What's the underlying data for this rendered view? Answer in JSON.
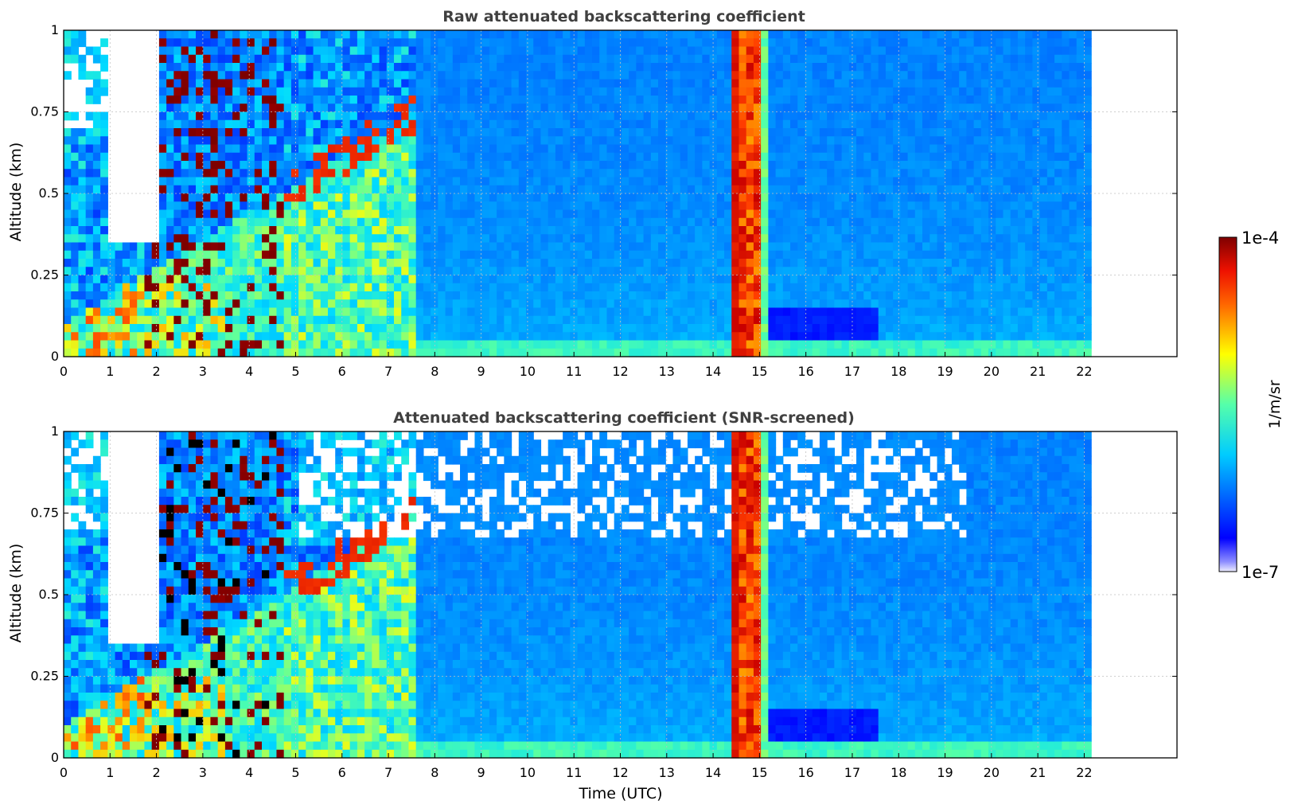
{
  "chart_data": [
    {
      "type": "heatmap",
      "title": "Raw attenuated backscattering coefficient",
      "xlabel": "",
      "ylabel": "Altitude (km)",
      "xlim": [
        0,
        24
      ],
      "ylim": [
        0,
        1
      ],
      "x_ticks": [
        "0",
        "1",
        "2",
        "3",
        "4",
        "5",
        "6",
        "7",
        "8",
        "9",
        "10",
        "11",
        "12",
        "13",
        "14",
        "15",
        "16",
        "17",
        "18",
        "19",
        "20",
        "21",
        "22"
      ],
      "y_ticks": [
        "0",
        "0.25",
        "0.5",
        "0.75",
        "1"
      ],
      "data_extent_hours": [
        0,
        22.15
      ],
      "grid": true,
      "screened": false
    },
    {
      "type": "heatmap",
      "title": "Attenuated backscattering coefficient (SNR-screened)",
      "xlabel": "Time (UTC)",
      "ylabel": "Altitude (km)",
      "xlim": [
        0,
        24
      ],
      "ylim": [
        0,
        1
      ],
      "x_ticks": [
        "0",
        "1",
        "2",
        "3",
        "4",
        "5",
        "6",
        "7",
        "8",
        "9",
        "10",
        "11",
        "12",
        "13",
        "14",
        "15",
        "16",
        "17",
        "18",
        "19",
        "20",
        "21",
        "22"
      ],
      "y_ticks": [
        "0",
        "0.25",
        "0.5",
        "0.75",
        "1"
      ],
      "data_extent_hours": [
        0,
        22.15
      ],
      "grid": true,
      "screened": true
    }
  ],
  "colorbar": {
    "label": "1/m/sr",
    "max_label": "1e-4",
    "min_label": "1e-7",
    "scale": "log",
    "colormap": "jet"
  }
}
